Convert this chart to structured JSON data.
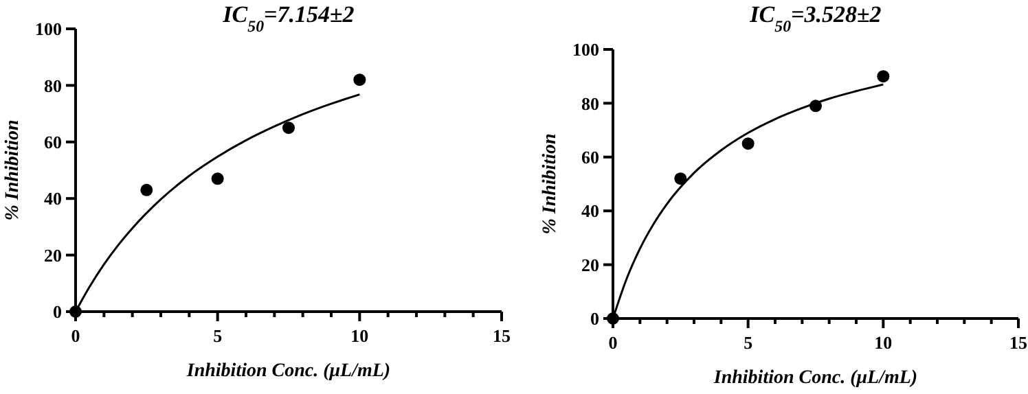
{
  "chart_data": [
    {
      "type": "scatter",
      "title": "IC$_{50}$=7.154±2",
      "xlabel": "Inhibition Conc. (μL/mL)",
      "ylabel": "% Inhibition",
      "xlim": [
        0,
        15
      ],
      "ylim": [
        0,
        100
      ],
      "xticks": [
        0,
        {
          "value": 1,
          "label": null
        },
        {
          "value": 2,
          "label": null
        },
        {
          "value": 3,
          "label": null
        },
        {
          "value": 4,
          "label": null
        },
        5,
        {
          "value": 6,
          "label": null
        },
        {
          "value": 7,
          "label": null
        },
        {
          "value": 8,
          "label": null
        },
        {
          "value": 9,
          "label": null
        },
        10,
        {
          "value": 11,
          "label": null
        },
        {
          "value": 12,
          "label": null
        },
        {
          "value": 13,
          "label": null
        },
        {
          "value": 14,
          "label": null
        },
        15
      ],
      "yticks": [
        0,
        20,
        40,
        60,
        80,
        100
      ],
      "series": [
        {
          "color": "#000000",
          "marker": "circle",
          "x": [
            0,
            2.5,
            5,
            7.5,
            10
          ],
          "values": [
            0,
            43,
            47,
            65,
            82
          ]
        },
        {
          "type": "line",
          "color": "#000000",
          "marker": "none",
          "line_style": "solid",
          "x": [
            0,
            0.5,
            1,
            1.5,
            2,
            3,
            4,
            5,
            6,
            7,
            8,
            9,
            10
          ],
          "values": [
            0,
            8.9,
            16.7,
            23.5,
            29.5,
            39.7,
            48,
            54.8,
            60.6,
            65.5,
            69.8,
            73.5,
            76.8
          ]
        }
      ]
    },
    {
      "type": "scatter",
      "title": "IC$_{50}$=3.528±2",
      "xlabel": "Inhibition Conc. (μL/mL)",
      "ylabel": "% Inhibition",
      "xlim": [
        0,
        15
      ],
      "ylim": [
        0,
        100
      ],
      "xticks": [
        0,
        {
          "value": 1,
          "label": null
        },
        {
          "value": 2,
          "label": null
        },
        {
          "value": 3,
          "label": null
        },
        {
          "value": 4,
          "label": null
        },
        5,
        {
          "value": 6,
          "label": null
        },
        {
          "value": 7,
          "label": null
        },
        {
          "value": 8,
          "label": null
        },
        {
          "value": 9,
          "label": null
        },
        10,
        {
          "value": 11,
          "label": null
        },
        {
          "value": 12,
          "label": null
        },
        {
          "value": 13,
          "label": null
        },
        {
          "value": 14,
          "label": null
        },
        15
      ],
      "yticks": [
        0,
        20,
        40,
        60,
        80,
        100
      ],
      "series": [
        {
          "color": "#000000",
          "marker": "circle",
          "x": [
            0,
            2.5,
            5,
            7.5,
            10
          ],
          "values": [
            0,
            52,
            65,
            79,
            90
          ]
        },
        {
          "type": "line",
          "color": "#000000",
          "marker": "none",
          "line_style": "solid",
          "x": [
            0,
            0.5,
            1,
            1.5,
            2,
            3,
            4,
            5,
            6,
            7,
            8,
            9,
            10
          ],
          "values": [
            0,
            14.6,
            26,
            35.1,
            42.6,
            54.1,
            62.5,
            69,
            74.1,
            78.2,
            81.7,
            84.5,
            87
          ]
        }
      ]
    }
  ]
}
